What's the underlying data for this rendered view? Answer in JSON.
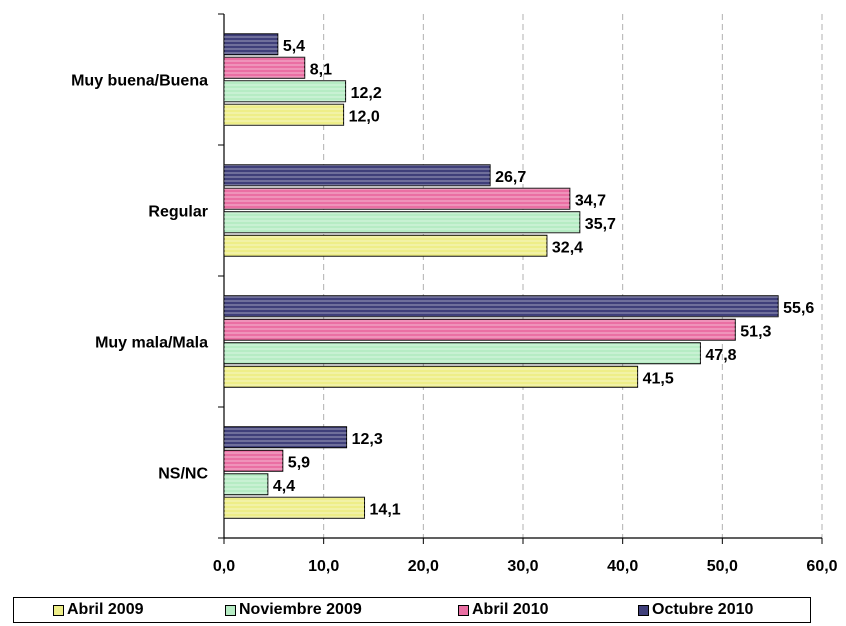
{
  "chart_data": {
    "type": "bar",
    "orientation": "horizontal",
    "categories": [
      "Muy buena/Buena",
      "Regular",
      "Muy mala/Mala",
      "NS/NC"
    ],
    "series": [
      {
        "name": "Octubre 2010",
        "color": "#3f3f7a",
        "values": [
          5.4,
          26.7,
          55.6,
          12.3
        ]
      },
      {
        "name": "Abril 2010",
        "color": "#ea6fa3",
        "values": [
          8.1,
          34.7,
          51.3,
          5.9
        ]
      },
      {
        "name": "Noviembre 2009",
        "color": "#b6ecc4",
        "values": [
          12.2,
          35.7,
          47.8,
          4.4
        ]
      },
      {
        "name": "Abril 2009",
        "color": "#eeee88",
        "values": [
          12.0,
          32.4,
          41.5,
          14.1
        ]
      }
    ],
    "data_labels": [
      [
        "5,4",
        "26,7",
        "55,6",
        "12,3"
      ],
      [
        "8,1",
        "34,7",
        "51,3",
        "5,9"
      ],
      [
        "12,2",
        "35,7",
        "47,8",
        "4,4"
      ],
      [
        "12,0",
        "32,4",
        "41,5",
        "14,1"
      ]
    ],
    "x_ticks": [
      0,
      10,
      20,
      30,
      40,
      50,
      60
    ],
    "x_tick_labels": [
      "0,0",
      "10,0",
      "20,0",
      "30,0",
      "40,0",
      "50,0",
      "60,0"
    ],
    "xlim": [
      0,
      60
    ],
    "grid": "vertical dashed",
    "legend_position": "bottom",
    "legend_order": [
      "Abril 2009",
      "Noviembre 2009",
      "Abril 2010",
      "Octubre 2010"
    ],
    "title": "",
    "xlabel": "",
    "ylabel": ""
  }
}
